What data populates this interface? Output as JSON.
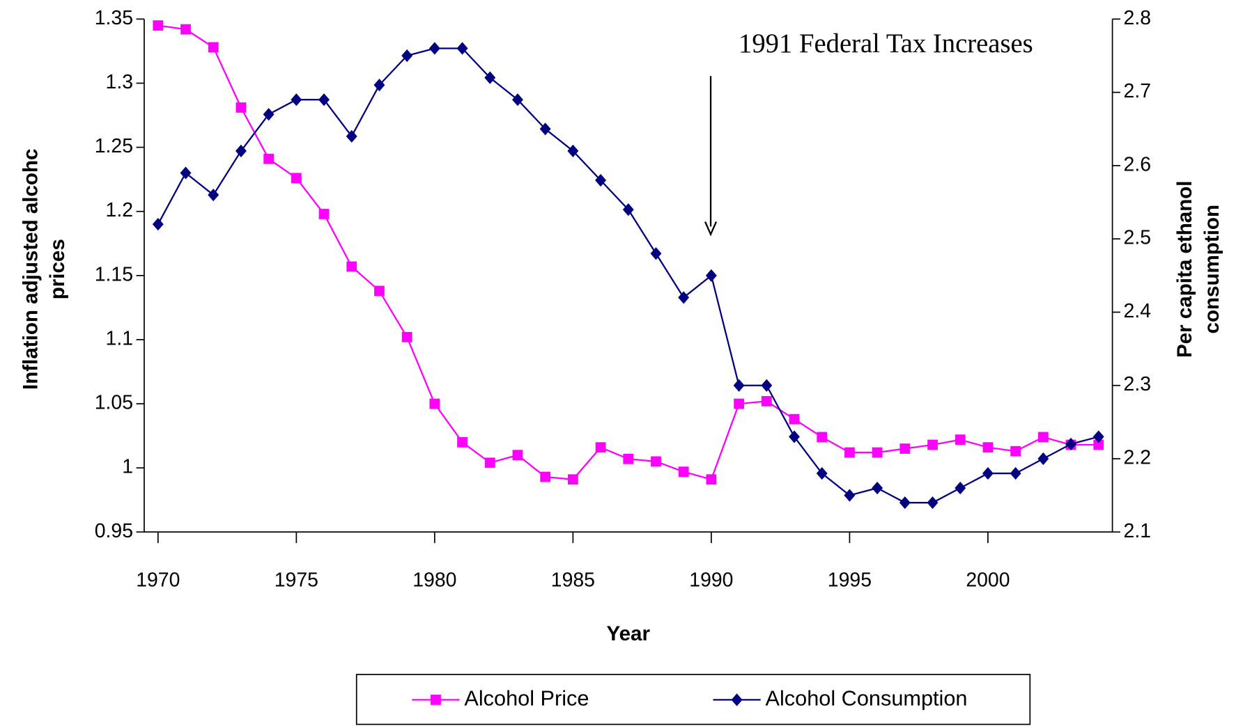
{
  "chart_data": {
    "type": "line",
    "annotation": "1991 Federal Tax Increases",
    "xlabel": "Year",
    "ylabel": [
      "Inflation adjusted alcohc",
      "prices"
    ],
    "y2label": [
      "Per capita ethanol",
      "consumption"
    ],
    "x": [
      1970,
      1971,
      1972,
      1973,
      1974,
      1975,
      1976,
      1977,
      1978,
      1979,
      1980,
      1981,
      1982,
      1983,
      1984,
      1985,
      1986,
      1987,
      1988,
      1989,
      1990,
      1991,
      1992,
      1993,
      1994,
      1995,
      1996,
      1997,
      1998,
      1999,
      2000,
      2001,
      2002,
      2003,
      2004
    ],
    "xlim": [
      1969.5,
      2004.5
    ],
    "xticks": [
      1970,
      1975,
      1980,
      1985,
      1990,
      1995,
      2000
    ],
    "ylim": [
      0.95,
      1.35
    ],
    "yticks": [
      0.95,
      1,
      1.05,
      1.1,
      1.15,
      1.2,
      1.25,
      1.3,
      1.35
    ],
    "y2lim": [
      2.1,
      2.8
    ],
    "y2ticks": [
      2.1,
      2.2,
      2.3,
      2.4,
      2.5,
      2.6,
      2.7,
      2.8
    ],
    "legend": "bottom",
    "series": [
      {
        "name": "Alcohol Price",
        "color": "#ff00ff",
        "marker": "square",
        "axis": "y",
        "values": [
          1.345,
          1.342,
          1.328,
          1.281,
          1.241,
          1.226,
          1.198,
          1.157,
          1.138,
          1.102,
          1.05,
          1.02,
          1.004,
          1.01,
          0.993,
          0.991,
          1.016,
          1.007,
          1.005,
          0.997,
          0.991,
          1.05,
          1.052,
          1.038,
          1.024,
          1.012,
          1.012,
          1.015,
          1.018,
          1.022,
          1.016,
          1.013,
          1.024,
          1.018,
          1.018
        ]
      },
      {
        "name": "Alcohol Consumption",
        "color": "#000080",
        "marker": "diamond",
        "axis": "y2",
        "values": [
          2.52,
          2.59,
          2.56,
          2.62,
          2.67,
          2.69,
          2.69,
          2.64,
          2.71,
          2.75,
          2.76,
          2.76,
          2.72,
          2.69,
          2.65,
          2.62,
          2.58,
          2.54,
          2.48,
          2.42,
          2.45,
          2.3,
          2.3,
          2.23,
          2.18,
          2.15,
          2.16,
          2.14,
          2.14,
          2.16,
          2.18,
          2.18,
          2.2,
          2.22,
          2.23
        ]
      }
    ]
  }
}
